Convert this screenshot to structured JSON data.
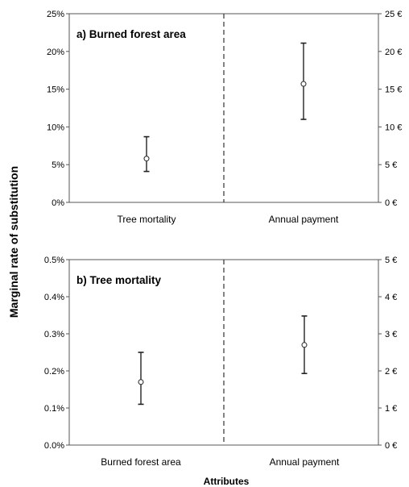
{
  "ylabel": "Marginal rate of substitution",
  "xlabel": "Attributes",
  "chart_data": [
    {
      "type": "scatter",
      "title": "a) Burned forest area",
      "categories": [
        "Tree mortality",
        "Annual payment"
      ],
      "left_axis": {
        "ylim": [
          0,
          25
        ],
        "ticks": [
          0,
          5,
          10,
          15,
          20,
          25
        ],
        "tick_labels": [
          "0%",
          "5%",
          "10%",
          "15%",
          "20%",
          "25%"
        ]
      },
      "right_axis": {
        "ylim": [
          0,
          25
        ],
        "ticks": [
          0,
          5,
          10,
          15,
          20,
          25
        ],
        "tick_labels": [
          "0 €",
          "5 €",
          "10 €",
          "15 €",
          "20 €",
          "25 €"
        ]
      },
      "series": [
        {
          "category": "Tree mortality",
          "axis": "left",
          "value": 5.8,
          "lower": 4.1,
          "upper": 8.7
        },
        {
          "category": "Annual payment",
          "axis": "right",
          "value": 15.7,
          "lower": 11.0,
          "upper": 21.1
        }
      ],
      "grid": false,
      "divider": "dashed vertical line between categories"
    },
    {
      "type": "scatter",
      "title": "b) Tree mortality",
      "categories": [
        "Burned forest area",
        "Annual payment"
      ],
      "left_axis": {
        "ylim": [
          0,
          0.5
        ],
        "ticks": [
          0,
          0.1,
          0.2,
          0.3,
          0.4,
          0.5
        ],
        "tick_labels": [
          "0.0%",
          "0.1%",
          "0.2%",
          "0.3%",
          "0.4%",
          "0.5%"
        ]
      },
      "right_axis": {
        "ylim": [
          0,
          5
        ],
        "ticks": [
          0,
          1,
          2,
          3,
          4,
          5
        ],
        "tick_labels": [
          "0 €",
          "1 €",
          "2 €",
          "3 €",
          "4 €",
          "5 €"
        ]
      },
      "series": [
        {
          "category": "Burned forest area",
          "axis": "left",
          "value": 0.17,
          "lower": 0.11,
          "upper": 0.25
        },
        {
          "category": "Annual payment",
          "axis": "right",
          "value": 2.7,
          "lower": 1.93,
          "upper": 3.48
        }
      ],
      "grid": false,
      "divider": "dashed vertical line between categories"
    }
  ]
}
